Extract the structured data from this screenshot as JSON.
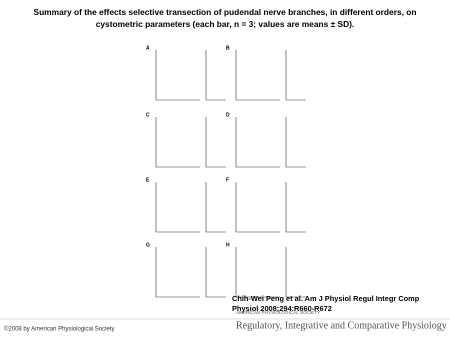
{
  "header": {
    "title_line1": "Summary of the effects selective transection of pudendal nerve branches, in different orders, on",
    "title_line2": "cystometric parameters (each bar, n = 3; values are means ± SD)."
  },
  "figure": {
    "panels": [
      "A",
      "B",
      "C",
      "D",
      "E",
      "F",
      "G",
      "H"
    ]
  },
  "citation": {
    "line1": "Chih-Wei Peng et al. Am J Physiol Regul Integr Comp",
    "line2": "Physiol 2008;294:R660-R672"
  },
  "footer": {
    "copyright": "©2008 by American Physiological Society",
    "society": "AMERICAN PHYSIOLOGICAL SOCIETY",
    "journal": "Regulatory, Integrative and Comparative Physiology"
  }
}
